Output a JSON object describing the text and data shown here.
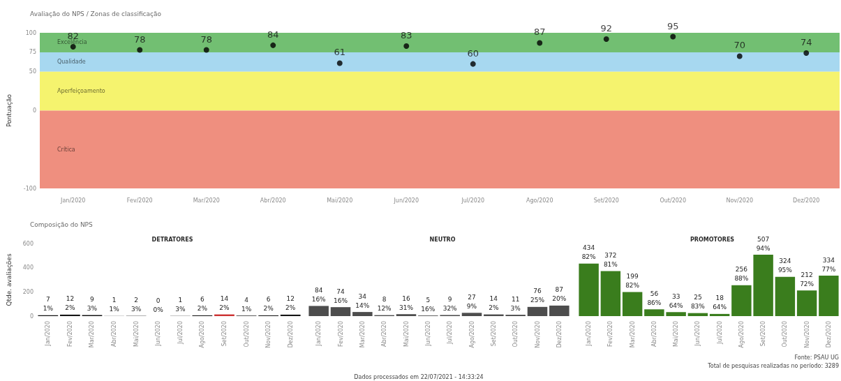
{
  "chart_data": [
    {
      "type": "scatter",
      "title": "Avaliação do NPS / Zonas de classificação",
      "ylabel": "Pontuação",
      "categories": [
        "Jan/2020",
        "Fev/2020",
        "Mar/2020",
        "Abr/2020",
        "Mai/2020",
        "Jun/2020",
        "Jul/2020",
        "Ago/2020",
        "Set/2020",
        "Out/2020",
        "Nov/2020",
        "Dez/2020"
      ],
      "values": [
        82,
        78,
        78,
        84,
        61,
        83,
        60,
        87,
        92,
        95,
        70,
        74
      ],
      "color": "#000000",
      "marker": "circle",
      "data_labels": true,
      "ylim": [
        -100,
        100
      ],
      "yticks": [
        -100,
        0,
        50,
        75,
        100
      ],
      "bands": [
        {
          "axis": "y",
          "from": 75,
          "to": 100,
          "label": "Excelência",
          "color": "#72bf72"
        },
        {
          "axis": "y",
          "from": 50,
          "to": 75,
          "label": "Qualidade",
          "color": "#a7d8f0"
        },
        {
          "axis": "y",
          "from": 0,
          "to": 50,
          "label": "Aperfeiçoamento",
          "color": "#f5f36e"
        },
        {
          "axis": "y",
          "from": -100,
          "to": 0,
          "label": "Crítica",
          "color": "#ef8f7f"
        }
      ]
    },
    {
      "type": "bar",
      "title": "Composição do NPS",
      "subtitle": "DETRATORES",
      "ylabel": "Qtde. avaliações",
      "categories": [
        "Jan/2020",
        "Fev/2020",
        "Mar/2020",
        "Abr/2020",
        "Mai/2020",
        "Jun/2020",
        "Jul/2020",
        "Ago/2020",
        "Set/2020",
        "Out/2020",
        "Nov/2020",
        "Dez/2020"
      ],
      "values": [
        7,
        12,
        9,
        1,
        2,
        0,
        1,
        6,
        14,
        4,
        6,
        12
      ],
      "colors": [
        "#151515",
        "#151515",
        "#151515",
        "#151515",
        "#151515",
        "#151515",
        "#151515",
        "#151515",
        "#cc3333",
        "#151515",
        "#151515",
        "#151515"
      ],
      "value_labels": [
        "7\n1%",
        "12\n2%",
        "9\n3%",
        "1\n1%",
        "2\n3%",
        "0\n0%",
        "1\n3%",
        "6\n2%",
        "14\n2%",
        "4\n1%",
        "6\n2%",
        "12\n2%"
      ],
      "ylim": [
        0,
        600
      ],
      "yticks": [
        0,
        200,
        400,
        600
      ]
    },
    {
      "type": "bar",
      "subtitle": "NEUTRO",
      "categories": [
        "Jan/2020",
        "Fev/2020",
        "Mar/2020",
        "Abr/2020",
        "Mai/2020",
        "Jun/2020",
        "Jul/2020",
        "Ago/2020",
        "Set/2020",
        "Out/2020",
        "Nov/2020",
        "Dez/2020"
      ],
      "values": [
        84,
        74,
        34,
        8,
        16,
        5,
        9,
        27,
        14,
        11,
        76,
        87
      ],
      "color": "#4d4d4d",
      "value_labels": [
        "84\n16%",
        "74\n16%",
        "34\n14%",
        "8\n12%",
        "16\n31%",
        "5\n16%",
        "9\n32%",
        "27\n9%",
        "14\n2%",
        "11\n3%",
        "76\n25%",
        "87\n20%"
      ],
      "ylim": [
        0,
        600
      ],
      "yticks": [
        0,
        200,
        400,
        600
      ],
      "tick_labels": "x",
      "annotations": [
        "Dados processados em 22/07/2021 - 14:33:24"
      ]
    },
    {
      "type": "bar",
      "subtitle": "PROMOTORES",
      "categories": [
        "Jan/2020",
        "Fev/2020",
        "Mar/2020",
        "Abr/2020",
        "Mai/2020",
        "Jun/2020",
        "Jul/2020",
        "Ago/2020",
        "Set/2020",
        "Out/2020",
        "Nov/2020",
        "Dez/2020"
      ],
      "values": [
        434,
        372,
        199,
        56,
        33,
        25,
        18,
        256,
        507,
        324,
        212,
        334
      ],
      "color": "#3a7d1d",
      "value_labels": [
        "434\n82%",
        "372\n81%",
        "199\n82%",
        "56\n86%",
        "33\n64%",
        "25\n83%",
        "18\n64%",
        "256\n88%",
        "507\n94%",
        "324\n95%",
        "212\n72%",
        "334\n77%"
      ],
      "ylim": [
        0,
        600
      ],
      "yticks": [
        0,
        200,
        400,
        600
      ],
      "tick_labels": "x",
      "annotations": [
        "Fonte: PSAU UG",
        "Total de pesquisas realizadas no período: 3289"
      ]
    }
  ]
}
